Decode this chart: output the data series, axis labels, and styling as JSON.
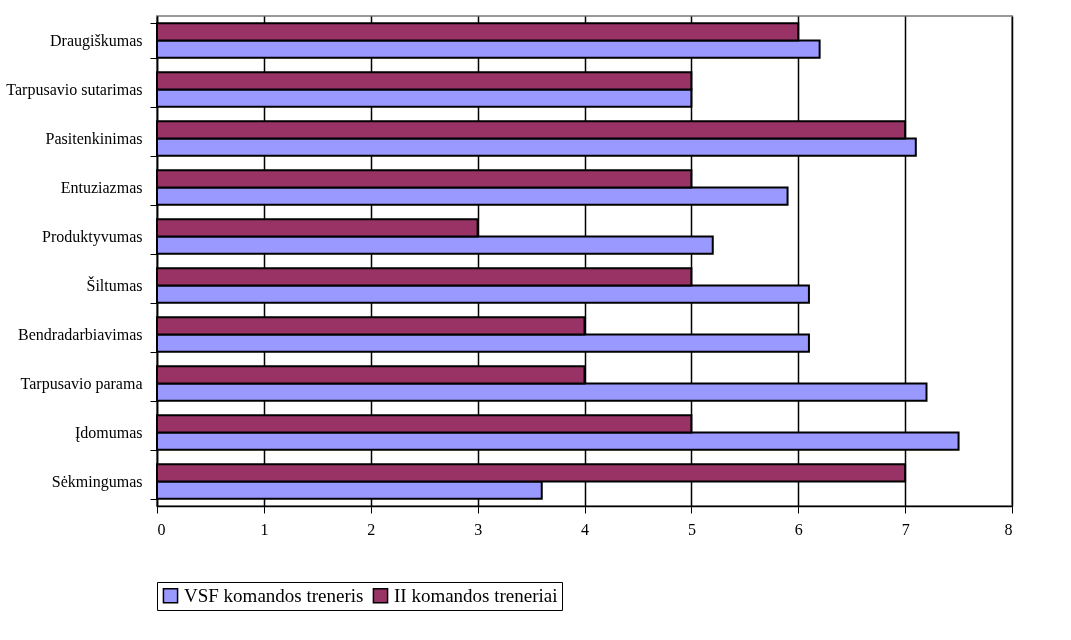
{
  "chart_data": {
    "type": "bar",
    "orientation": "horizontal",
    "categories": [
      "Draugiškumas",
      "Tarpusavio sutarimas",
      "Pasitenkinimas",
      "Entuziazmas",
      "Produktyvumas",
      "Šiltumas",
      "Bendradarbiavimas",
      "Tarpusavio parama",
      "Įdomumas",
      "Sėkmingumas"
    ],
    "series": [
      {
        "name": "VSF komandos treneris",
        "color": "#9999ff",
        "values": [
          6.2,
          5,
          7.1,
          5.9,
          5.2,
          6.1,
          6.1,
          7.2,
          7.5,
          3.6
        ]
      },
      {
        "name": "II komandos treneriai",
        "color": "#993366",
        "values": [
          6,
          5,
          7,
          5,
          3,
          5,
          4,
          4,
          5,
          7
        ]
      }
    ],
    "xlim": [
      0,
      8
    ],
    "xticks": [
      0,
      1,
      2,
      3,
      4,
      5,
      6,
      7,
      8
    ],
    "grid": "x",
    "legend": "bottom"
  }
}
